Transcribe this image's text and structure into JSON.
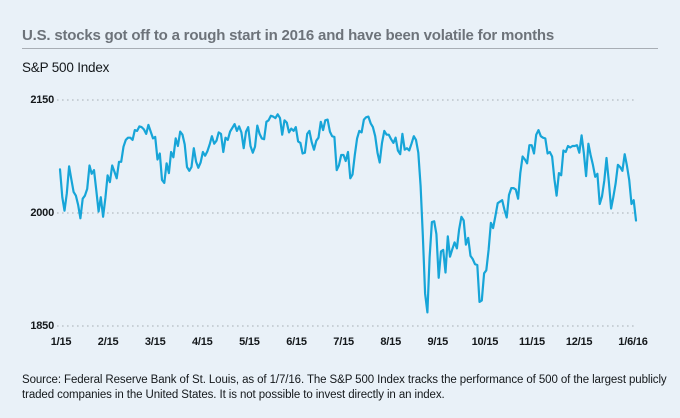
{
  "page": {
    "background": "#e9f1f8",
    "accent": "#17a5d8"
  },
  "header": {
    "title": "U.S. stocks got off to a rough start in 2016 and have been volatile for months"
  },
  "chart_data": {
    "type": "line",
    "title": "S&P 500 Index",
    "xlabel": "",
    "ylabel": "S&P 500 Index",
    "ylim": [
      1850,
      2150
    ],
    "y_ticks": [
      2150,
      2000,
      1850
    ],
    "y_tick_labels": [
      "2150",
      "2000",
      "1850"
    ],
    "x_tick_labels": [
      "1/15",
      "2/15",
      "3/15",
      "4/15",
      "5/15",
      "6/15",
      "7/15",
      "8/15",
      "9/15",
      "10/15",
      "11/15",
      "12/15",
      "1/6/16"
    ],
    "grid": "horizontal-dotted",
    "legend": "none",
    "grid_color": "#a7aeb5",
    "series": [
      {
        "name": "S&P 500 Index daily close",
        "color": "#17a5d8",
        "values": [
          2058,
          2021,
          2003,
          2026,
          2062,
          2045,
          2028,
          2023,
          2011,
          1993,
          2019,
          2023,
          2032,
          2063,
          2052,
          2057,
          2030,
          2002,
          2021,
          1995,
          2020,
          2050,
          2041,
          2063,
          2055,
          2046,
          2068,
          2068,
          2088,
          2097,
          2100,
          2100,
          2097,
          2110,
          2109,
          2115,
          2114,
          2111,
          2105,
          2117,
          2108,
          2099,
          2101,
          2071,
          2079,
          2044,
          2040,
          2066,
          2053,
          2081,
          2074,
          2099,
          2089,
          2108,
          2104,
          2091,
          2061,
          2056,
          2061,
          2086,
          2068,
          2060,
          2067,
          2081,
          2076,
          2082,
          2091,
          2102,
          2092,
          2096,
          2107,
          2105,
          2081,
          2100,
          2097,
          2108,
          2113,
          2118,
          2109,
          2115,
          2107,
          2086,
          2108,
          2114,
          2089,
          2080,
          2088,
          2116,
          2105,
          2099,
          2098,
          2121,
          2123,
          2129,
          2128,
          2126,
          2131,
          2126,
          2104,
          2123,
          2120,
          2107,
          2112,
          2109,
          2114,
          2095,
          2093,
          2079,
          2080,
          2105,
          2109,
          2094,
          2084,
          2096,
          2100,
          2121,
          2110,
          2123,
          2124,
          2108,
          2102,
          2101,
          2057,
          2063,
          2077,
          2077,
          2069,
          2081,
          2046,
          2051,
          2077,
          2099,
          2109,
          2107,
          2124,
          2127,
          2128,
          2119,
          2114,
          2102,
          2080,
          2067,
          2093,
          2109,
          2104,
          2104,
          2098,
          2093,
          2100,
          2083,
          2078,
          2105,
          2084,
          2086,
          2083,
          2092,
          2102,
          2097,
          2080,
          2036,
          1971,
          1893,
          1868,
          1941,
          1988,
          1989,
          1972,
          1914,
          1949,
          1951,
          1921,
          1969,
          1942,
          1952,
          1961,
          1953,
          1978,
          1995,
          1990,
          1958,
          1967,
          1943,
          1939,
          1932,
          1931,
          1882,
          1884,
          1920,
          1924,
          1951,
          1987,
          1980,
          1996,
          2013,
          2015,
          2017,
          2004,
          1994,
          2024,
          2033,
          2033,
          2031,
          2019,
          2053,
          2075,
          2071,
          2066,
          2090,
          2090,
          2079,
          2104,
          2110,
          2102,
          2100,
          2099,
          2079,
          2081,
          2075,
          2045,
          2023,
          2053,
          2050,
          2083,
          2081,
          2089,
          2087,
          2089,
          2089,
          2090,
          2080,
          2103,
          2080,
          2049,
          2092,
          2077,
          2064,
          2048,
          2052,
          2012,
          2022,
          2043,
          2073,
          2042,
          2006,
          2021,
          2039,
          2064,
          2061,
          2056,
          2078,
          2063,
          2044,
          2012,
          2017,
          1990
        ]
      }
    ]
  },
  "footnote": {
    "text": "Source: Federal Reserve Bank of St. Louis, as of 1/7/16. The S&P 500 Index tracks the performance of 500 of the largest publicly traded companies in the United States. It is not possible to invest directly in an index."
  }
}
